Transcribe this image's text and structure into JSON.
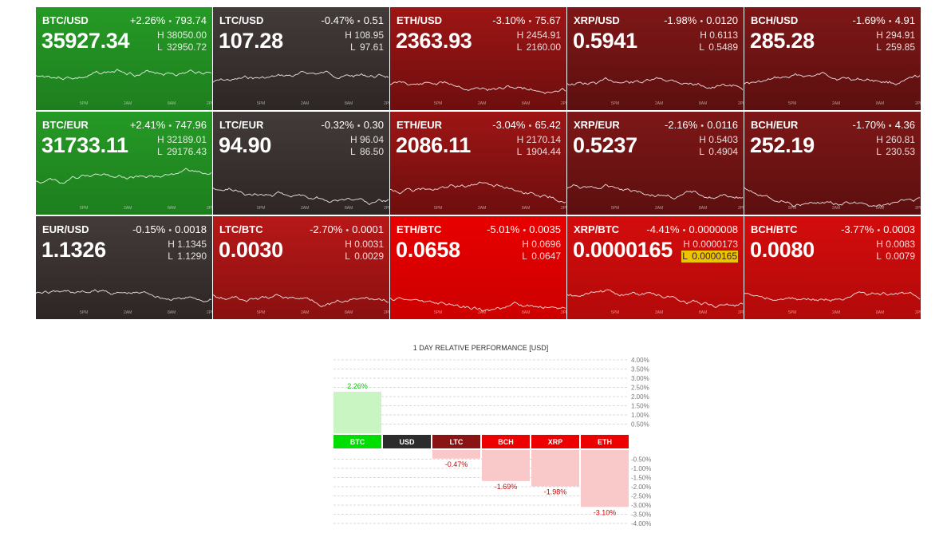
{
  "tiles": [
    {
      "pair": "BTC/USD",
      "change": "+2.26%",
      "change_abs": "793.74",
      "price": "35927.34",
      "high": "38050.00",
      "low": "32950.72",
      "color": "green",
      "trend": 0.8,
      "seed": 3
    },
    {
      "pair": "LTC/USD",
      "change": "-0.47%",
      "change_abs": "0.51",
      "price": "107.28",
      "high": "108.95",
      "low": "97.61",
      "color": "dark",
      "trend": -0.1,
      "seed": 7
    },
    {
      "pair": "ETH/USD",
      "change": "-3.10%",
      "change_abs": "75.67",
      "price": "2363.93",
      "high": "2454.91",
      "low": "2160.00",
      "color": "red2",
      "trend": -0.3,
      "seed": 11
    },
    {
      "pair": "XRP/USD",
      "change": "-1.98%",
      "change_abs": "0.0120",
      "price": "0.5941",
      "high": "0.6113",
      "low": "0.5489",
      "color": "red3",
      "trend": -0.3,
      "seed": 13
    },
    {
      "pair": "BCH/USD",
      "change": "-1.69%",
      "change_abs": "4.91",
      "price": "285.28",
      "high": "294.91",
      "low": "259.85",
      "color": "red3",
      "trend": -0.2,
      "seed": 17
    },
    {
      "pair": "BTC/EUR",
      "change": "+2.41%",
      "change_abs": "747.96",
      "price": "31733.11",
      "high": "32189.01",
      "low": "29176.43",
      "color": "green",
      "trend": 0.8,
      "seed": 19
    },
    {
      "pair": "LTC/EUR",
      "change": "-0.32%",
      "change_abs": "0.30",
      "price": "94.90",
      "high": "96.04",
      "low": "86.50",
      "color": "dark",
      "trend": -0.1,
      "seed": 23
    },
    {
      "pair": "ETH/EUR",
      "change": "-3.04%",
      "change_abs": "65.42",
      "price": "2086.11",
      "high": "2170.14",
      "low": "1904.44",
      "color": "red2",
      "trend": -0.3,
      "seed": 29
    },
    {
      "pair": "XRP/EUR",
      "change": "-2.16%",
      "change_abs": "0.0116",
      "price": "0.5237",
      "high": "0.5403",
      "low": "0.4904",
      "color": "red3",
      "trend": -0.3,
      "seed": 31
    },
    {
      "pair": "BCH/EUR",
      "change": "-1.70%",
      "change_abs": "4.36",
      "price": "252.19",
      "high": "260.81",
      "low": "230.53",
      "color": "red3",
      "trend": -0.2,
      "seed": 37
    },
    {
      "pair": "EUR/USD",
      "change": "-0.15%",
      "change_abs": "0.0018",
      "price": "1.1326",
      "high": "1.1345",
      "low": "1.1290",
      "color": "dark",
      "trend": -0.2,
      "seed": 41
    },
    {
      "pair": "LTC/BTC",
      "change": "-2.70%",
      "change_abs": "0.0001",
      "price": "0.0030",
      "high": "0.0031",
      "low": "0.0029",
      "color": "red1",
      "trend": -0.6,
      "seed": 43
    },
    {
      "pair": "ETH/BTC",
      "change": "-5.01%",
      "change_abs": "0.0035",
      "price": "0.0658",
      "high": "0.0696",
      "low": "0.0647",
      "color": "red4",
      "trend": -0.9,
      "seed": 47
    },
    {
      "pair": "XRP/BTC",
      "change": "-4.41%",
      "change_abs": "0.0000008",
      "price": "0.0000165",
      "high": "0.0000173",
      "low": "0.0000165",
      "color": "red5",
      "trend": -0.9,
      "seed": 53,
      "low_highlight": true
    },
    {
      "pair": "BCH/BTC",
      "change": "-3.77%",
      "change_abs": "0.0003",
      "price": "0.0080",
      "high": "0.0083",
      "low": "0.0079",
      "color": "red5",
      "trend": -0.7,
      "seed": 59
    }
  ],
  "time_ticks": [
    "5PM",
    "2AM",
    "8AM",
    "2PM"
  ],
  "colors": {
    "up": "#00cc00",
    "down": "#d40000",
    "neutral": "#333333",
    "bar_up_fill": "#c9f5c2",
    "bar_down_fill": "#f9c9c9"
  },
  "chart_data": {
    "type": "bar",
    "title": "1 DAY RELATIVE PERFORMANCE  [USD]",
    "categories": [
      "BTC",
      "USD",
      "LTC",
      "BCH",
      "XRP",
      "ETH"
    ],
    "values": [
      2.26,
      0,
      -0.47,
      -1.69,
      -1.98,
      -3.1
    ],
    "value_labels": [
      "2.26%",
      "",
      "-0.47%",
      "-1.69%",
      "-1.98%",
      "-3.10%"
    ],
    "category_colors": [
      "#00dd00",
      "#2c2c2c",
      "#8a1414",
      "#ee0000",
      "#ee0000",
      "#ee0000"
    ],
    "pos_ticks": [
      "4.00%",
      "3.50%",
      "3.00%",
      "2.50%",
      "2.00%",
      "1.50%",
      "1.00%",
      "0.50%"
    ],
    "neg_ticks": [
      "-0.50%",
      "-1.00%",
      "-1.50%",
      "-2.00%",
      "-2.50%",
      "-3.00%",
      "-3.50%",
      "-4.00%"
    ],
    "ylim": [
      -4,
      4
    ],
    "grid": true
  }
}
